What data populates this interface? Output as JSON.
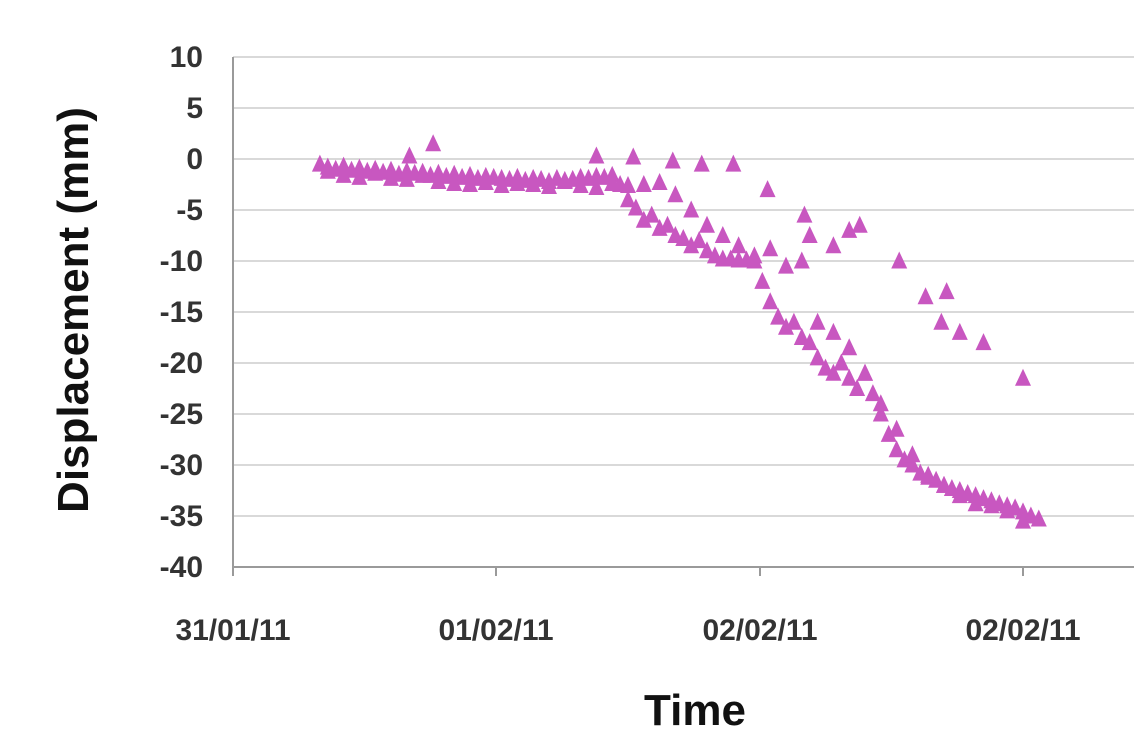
{
  "chart_data": {
    "type": "scatter",
    "xlabel": "Time",
    "ylabel": "Displacement (mm)",
    "ylim": [
      -40,
      10
    ],
    "yticks": [
      10,
      5,
      0,
      -5,
      -10,
      -15,
      -20,
      -25,
      -30,
      -35,
      -40
    ],
    "xticks": [
      "31/01/11",
      "01/02/11",
      "02/02/11",
      "02/02/11"
    ],
    "xlim": [
      0,
      3.4
    ],
    "grid": true,
    "marker": "triangle",
    "color": "#c857c0",
    "series": [
      {
        "x": [
          0.33,
          0.36,
          0.39,
          0.42,
          0.45,
          0.48,
          0.51,
          0.54,
          0.57,
          0.6,
          0.63,
          0.66,
          0.69,
          0.72,
          0.75,
          0.78,
          0.81,
          0.84,
          0.87,
          0.9,
          0.93,
          0.96,
          0.99,
          1.02,
          1.05,
          1.08,
          1.11,
          1.14,
          1.17,
          1.2,
          1.23,
          1.26,
          1.29,
          1.32,
          1.35,
          1.38,
          1.41,
          1.44,
          1.47,
          1.5,
          1.53,
          1.56,
          1.59,
          1.62,
          1.65,
          1.68,
          1.71,
          1.74,
          1.77,
          1.8,
          1.83,
          1.86,
          1.89,
          1.92,
          1.95,
          1.98,
          2.01,
          2.04,
          2.07,
          2.1,
          2.13,
          2.16,
          2.19,
          2.22,
          2.25,
          2.28,
          2.31,
          2.34,
          2.37,
          2.4,
          2.43,
          2.46,
          2.49,
          2.52,
          2.55,
          2.58,
          2.61,
          2.64,
          2.67,
          2.7,
          2.73,
          2.76,
          2.79,
          2.82,
          2.85,
          2.88,
          2.91,
          2.94,
          2.97,
          3.0,
          3.03,
          3.06,
          0.36,
          0.42,
          0.48,
          0.54,
          0.6,
          0.66,
          0.72,
          0.78,
          0.84,
          0.9,
          0.96,
          1.02,
          1.08,
          1.14,
          1.2,
          1.26,
          1.32,
          1.38,
          1.44,
          1.5,
          1.56,
          1.62,
          1.68,
          1.74,
          1.8,
          1.86,
          1.92,
          1.98,
          2.04,
          2.1,
          2.16,
          2.22,
          2.28,
          2.34,
          2.4,
          2.46,
          2.52,
          2.58,
          2.64,
          2.7,
          2.76,
          2.82,
          2.88,
          2.94,
          3.0,
          0.67,
          0.76,
          1.38,
          1.52,
          1.67,
          1.78,
          1.9,
          2.03,
          2.17,
          2.19,
          2.28,
          2.34,
          2.38,
          2.53,
          2.63,
          2.69,
          2.71,
          2.76,
          2.85,
          3.0
        ],
        "y": [
          -0.5,
          -0.8,
          -1.0,
          -0.7,
          -1.1,
          -0.9,
          -1.2,
          -1.0,
          -1.3,
          -1.1,
          -1.5,
          -1.2,
          -1.4,
          -1.3,
          -1.6,
          -1.4,
          -1.7,
          -1.5,
          -1.8,
          -1.6,
          -1.9,
          -1.7,
          -1.8,
          -1.9,
          -2.0,
          -1.8,
          -2.1,
          -1.9,
          -2.0,
          -2.2,
          -1.9,
          -2.1,
          -2.0,
          -1.8,
          -1.9,
          -1.7,
          -1.8,
          -1.6,
          -2.5,
          -4.0,
          -4.8,
          -6.0,
          -5.5,
          -6.8,
          -6.5,
          -7.5,
          -7.8,
          -8.5,
          -8.0,
          -9.0,
          -9.5,
          -9.8,
          -9.8,
          -9.9,
          -9.9,
          -10.0,
          -12.0,
          -14.0,
          -15.5,
          -16.5,
          -16.0,
          -17.5,
          -18.0,
          -19.5,
          -20.5,
          -21.0,
          -20.0,
          -21.5,
          -22.5,
          -21.0,
          -23.0,
          -25.0,
          -27.0,
          -28.5,
          -29.5,
          -30.0,
          -30.8,
          -31.2,
          -31.5,
          -32.0,
          -32.3,
          -32.5,
          -32.8,
          -33.0,
          -33.3,
          -33.5,
          -33.8,
          -34.0,
          -34.2,
          -34.6,
          -35.0,
          -35.3,
          -1.2,
          -1.6,
          -1.8,
          -1.4,
          -1.9,
          -2.0,
          -1.6,
          -2.2,
          -2.4,
          -2.5,
          -2.3,
          -2.6,
          -2.4,
          -2.5,
          -2.7,
          -2.2,
          -2.6,
          -2.8,
          -2.4,
          -2.6,
          -2.5,
          -2.3,
          -3.5,
          -5.0,
          -6.5,
          -7.5,
          -8.5,
          -9.5,
          -8.8,
          -10.5,
          -10.0,
          -16.0,
          -17.0,
          -18.5,
          -21.0,
          -24.0,
          -26.5,
          -29.0,
          -31.0,
          -32.0,
          -33.0,
          -33.8,
          -34.0,
          -34.5,
          -35.5,
          0.3,
          1.5,
          0.3,
          0.2,
          -0.2,
          -0.5,
          -0.5,
          -3.0,
          -5.5,
          -7.5,
          -8.5,
          -7.0,
          -6.5,
          -10.0,
          -13.5,
          -16.0,
          -13.0,
          -17.0,
          -18.0,
          -21.5
        ]
      }
    ]
  }
}
